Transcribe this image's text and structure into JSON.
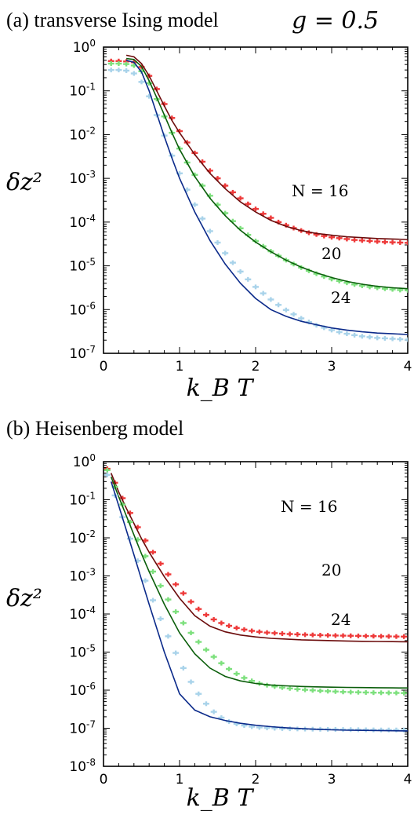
{
  "chart_data": [
    {
      "type": "line",
      "panel_label": "(a) transverse Ising model",
      "parameter_label": "g = 0.5",
      "xlabel": "k_B T",
      "ylabel": "δz²",
      "xlim": [
        0,
        4
      ],
      "ylim": [
        1e-07,
        1
      ],
      "yscale": "log",
      "x_ticks": [
        "0",
        "1",
        "2",
        "3",
        "4"
      ],
      "y_ticks": [
        "10^0",
        "10^-1",
        "10^-2",
        "10^-3",
        "10^-4",
        "10^-5",
        "10^-6",
        "10^-7"
      ],
      "series": [
        {
          "name": "N = 16",
          "label_text": "N = 16",
          "color_markers": "#ee3a3a",
          "color_line": "#6b0b0b",
          "data_x": [
            0.1,
            0.2,
            0.3,
            0.4,
            0.5,
            0.6,
            0.7,
            0.8,
            0.9,
            1.0,
            1.1,
            1.2,
            1.3,
            1.4,
            1.5,
            1.6,
            1.7,
            1.8,
            1.9,
            2.0,
            2.1,
            2.2,
            2.3,
            2.4,
            2.5,
            2.6,
            2.7,
            2.8,
            2.9,
            3.0,
            3.1,
            3.2,
            3.3,
            3.4,
            3.5,
            3.6,
            3.7,
            3.8,
            3.9,
            4.0
          ],
          "data_y": [
            0.48,
            0.48,
            0.47,
            0.45,
            0.35,
            0.22,
            0.11,
            0.05,
            0.024,
            0.012,
            0.0066,
            0.0038,
            0.0024,
            0.0015,
            0.001,
            0.00068,
            0.00048,
            0.00035,
            0.00026,
            0.0002,
            0.000155,
            0.000125,
            0.0001,
            8.5e-05,
            7.3e-05,
            6.4e-05,
            5.7e-05,
            5.2e-05,
            4.8e-05,
            4.5e-05,
            4.3e-05,
            4.1e-05,
            3.9e-05,
            3.8e-05,
            3.7e-05,
            3.6e-05,
            3.5e-05,
            3.45e-05,
            3.4e-05,
            3.35e-05
          ],
          "curve_x": [
            0.3,
            0.4,
            0.5,
            0.6,
            0.7,
            0.8,
            0.9,
            1.0,
            1.2,
            1.4,
            1.6,
            1.8,
            2.0,
            2.2,
            2.4,
            2.6,
            2.8,
            3.0,
            3.2,
            3.4,
            3.6,
            3.8,
            4.0
          ],
          "curve_y": [
            0.65,
            0.6,
            0.42,
            0.22,
            0.1,
            0.045,
            0.021,
            0.011,
            0.0035,
            0.0013,
            0.00058,
            0.00029,
            0.00017,
            0.00011,
            8e-05,
            6.4e-05,
            5.5e-05,
            5e-05,
            4.6e-05,
            4.4e-05,
            4.2e-05,
            4.1e-05,
            4e-05
          ]
        },
        {
          "name": "20",
          "label_text": "20",
          "color_markers": "#7de07d",
          "color_line": "#0b5e0b",
          "data_x": [
            0.1,
            0.2,
            0.3,
            0.4,
            0.5,
            0.6,
            0.7,
            0.8,
            0.9,
            1.0,
            1.1,
            1.2,
            1.3,
            1.4,
            1.5,
            1.6,
            1.7,
            1.8,
            1.9,
            2.0,
            2.1,
            2.2,
            2.3,
            2.4,
            2.5,
            2.6,
            2.7,
            2.8,
            2.9,
            3.0,
            3.1,
            3.2,
            3.3,
            3.4,
            3.5,
            3.6,
            3.7,
            3.8,
            3.9,
            4.0
          ],
          "data_y": [
            0.42,
            0.42,
            0.41,
            0.38,
            0.28,
            0.15,
            0.065,
            0.026,
            0.011,
            0.0048,
            0.0023,
            0.0012,
            0.00068,
            0.0004,
            0.00025,
            0.00016,
            0.000105,
            7.2e-05,
            5.1e-05,
            3.7e-05,
            2.8e-05,
            2.15e-05,
            1.7e-05,
            1.35e-05,
            1.1e-05,
            9.1e-06,
            7.7e-06,
            6.6e-06,
            5.7e-06,
            5e-06,
            4.5e-06,
            4.1e-06,
            3.75e-06,
            3.5e-06,
            3.3e-06,
            3.15e-06,
            3e-06,
            2.9e-06,
            2.8e-06,
            2.75e-06
          ],
          "curve_x": [
            0.3,
            0.4,
            0.5,
            0.6,
            0.7,
            0.8,
            0.9,
            1.0,
            1.2,
            1.4,
            1.6,
            1.8,
            2.0,
            2.2,
            2.4,
            2.6,
            2.8,
            3.0,
            3.2,
            3.4,
            3.6,
            3.8,
            4.0
          ],
          "curve_y": [
            0.55,
            0.52,
            0.36,
            0.17,
            0.07,
            0.028,
            0.011,
            0.0046,
            0.0011,
            0.00035,
            0.00014,
            6.5e-05,
            3.5e-05,
            2.1e-05,
            1.35e-05,
            9.3e-06,
            6.9e-06,
            5.4e-06,
            4.4e-06,
            3.8e-06,
            3.4e-06,
            3.15e-06,
            3e-06
          ]
        },
        {
          "name": "24",
          "label_text": "24",
          "color_markers": "#a9d3ea",
          "color_line": "#0b2a8a",
          "data_x": [
            0.1,
            0.2,
            0.3,
            0.4,
            0.5,
            0.6,
            0.7,
            0.8,
            0.9,
            1.0,
            1.1,
            1.2,
            1.3,
            1.4,
            1.5,
            1.6,
            1.7,
            1.8,
            1.9,
            2.0,
            2.1,
            2.2,
            2.3,
            2.4,
            2.5,
            2.6,
            2.7,
            2.8,
            2.9,
            3.0,
            3.1,
            3.2,
            3.3,
            3.4,
            3.5,
            3.6,
            3.7,
            3.8,
            3.9,
            4.0
          ],
          "data_y": [
            0.3,
            0.3,
            0.29,
            0.25,
            0.16,
            0.075,
            0.028,
            0.0095,
            0.0033,
            0.0013,
            0.00055,
            0.00025,
            0.00012,
            6.2e-05,
            3.4e-05,
            1.95e-05,
            1.18e-05,
            7.4e-06,
            4.9e-06,
            3.3e-06,
            2.35e-06,
            1.7e-06,
            1.28e-06,
            9.8e-07,
            7.8e-07,
            6.3e-07,
            5.2e-07,
            4.4e-07,
            3.85e-07,
            3.4e-07,
            3.05e-07,
            2.8e-07,
            2.6e-07,
            2.45e-07,
            2.35e-07,
            2.25e-07,
            2.2e-07,
            2.15e-07,
            2.1e-07,
            2.05e-07
          ],
          "curve_x": [
            0.3,
            0.4,
            0.5,
            0.6,
            0.7,
            0.8,
            0.9,
            1.0,
            1.2,
            1.4,
            1.6,
            1.8,
            2.0,
            2.2,
            2.4,
            2.6,
            2.8,
            3.0,
            3.2,
            3.4,
            3.6,
            3.8,
            4.0
          ],
          "curve_y": [
            0.5,
            0.45,
            0.27,
            0.1,
            0.03,
            0.009,
            0.0029,
            0.001,
            0.00017,
            3.8e-05,
            1.1e-05,
            4e-06,
            1.8e-06,
            1e-06,
            7e-07,
            5.4e-07,
            4.5e-07,
            3.8e-07,
            3.4e-07,
            3.1e-07,
            2.9e-07,
            2.8e-07,
            2.7e-07
          ]
        }
      ]
    },
    {
      "type": "line",
      "panel_label": "(b) Heisenberg model",
      "xlabel": "k_B T",
      "ylabel": "δz²",
      "xlim": [
        0,
        4
      ],
      "ylim": [
        1e-08,
        1
      ],
      "yscale": "log",
      "x_ticks": [
        "0",
        "1",
        "2",
        "3",
        "4"
      ],
      "y_ticks": [
        "10^0",
        "10^-1",
        "10^-2",
        "10^-3",
        "10^-4",
        "10^-5",
        "10^-6",
        "10^-7",
        "10^-8"
      ],
      "series": [
        {
          "name": "N = 16",
          "label_text": "N = 16",
          "color_markers": "#ee3a3a",
          "color_line": "#6b0b0b",
          "data_x": [
            0.05,
            0.15,
            0.25,
            0.35,
            0.45,
            0.55,
            0.65,
            0.75,
            0.85,
            0.95,
            1.05,
            1.15,
            1.25,
            1.35,
            1.45,
            1.55,
            1.65,
            1.75,
            1.85,
            1.95,
            2.05,
            2.15,
            2.25,
            2.35,
            2.45,
            2.55,
            2.65,
            2.75,
            2.85,
            2.95,
            3.05,
            3.15,
            3.25,
            3.35,
            3.45,
            3.55,
            3.65,
            3.75,
            3.85,
            3.95
          ],
          "data_y": [
            0.65,
            0.28,
            0.11,
            0.045,
            0.019,
            0.0085,
            0.0042,
            0.0021,
            0.0011,
            0.0006,
            0.00035,
            0.00021,
            0.000135,
            9.5e-05,
            7.2e-05,
            5.8e-05,
            4.9e-05,
            4.3e-05,
            3.9e-05,
            3.6e-05,
            3.4e-05,
            3.25e-05,
            3.15e-05,
            3.05e-05,
            2.98e-05,
            2.92e-05,
            2.86e-05,
            2.82e-05,
            2.78e-05,
            2.75e-05,
            2.72e-05,
            2.7e-05,
            2.68e-05,
            2.66e-05,
            2.64e-05,
            2.62e-05,
            2.6e-05,
            2.58e-05,
            2.56e-05,
            2.55e-05
          ],
          "curve_x": [
            0.1,
            0.2,
            0.3,
            0.4,
            0.5,
            0.6,
            0.8,
            1.0,
            1.2,
            1.4,
            1.6,
            1.8,
            2.0,
            2.2,
            2.4,
            2.6,
            2.8,
            3.0,
            3.2,
            3.4,
            3.6,
            3.8,
            4.0
          ],
          "curve_y": [
            0.5,
            0.16,
            0.06,
            0.024,
            0.0095,
            0.0042,
            0.00095,
            0.00026,
            9e-05,
            4.8e-05,
            3.4e-05,
            2.8e-05,
            2.5e-05,
            2.3e-05,
            2.2e-05,
            2.1e-05,
            2.05e-05,
            2e-05,
            1.95e-05,
            1.92e-05,
            1.9e-05,
            1.88e-05,
            1.86e-05
          ]
        },
        {
          "name": "20",
          "label_text": "20",
          "color_markers": "#7de07d",
          "color_line": "#0b5e0b",
          "data_x": [
            0.05,
            0.15,
            0.25,
            0.35,
            0.45,
            0.55,
            0.65,
            0.75,
            0.85,
            0.95,
            1.05,
            1.15,
            1.25,
            1.35,
            1.45,
            1.55,
            1.65,
            1.75,
            1.85,
            1.95,
            2.05,
            2.15,
            2.25,
            2.35,
            2.45,
            2.55,
            2.65,
            2.75,
            2.85,
            2.95,
            3.05,
            3.15,
            3.25,
            3.35,
            3.45,
            3.55,
            3.65,
            3.75,
            3.85,
            3.95
          ],
          "data_y": [
            0.6,
            0.22,
            0.075,
            0.026,
            0.009,
            0.0033,
            0.0013,
            0.00055,
            0.00024,
            0.000115,
            5.8e-05,
            3.2e-05,
            1.85e-05,
            1.15e-05,
            7.5e-06,
            5.1e-06,
            3.6e-06,
            2.7e-06,
            2.1e-06,
            1.75e-06,
            1.5e-06,
            1.35e-06,
            1.25e-06,
            1.17e-06,
            1.11e-06,
            1.06e-06,
            1.02e-06,
            9.9e-07,
            9.6e-07,
            9.4e-07,
            9.2e-07,
            9e-07,
            8.9e-07,
            8.8e-07,
            8.7e-07,
            8.6e-07,
            8.55e-07,
            8.5e-07,
            8.45e-07,
            8.4e-07
          ],
          "curve_x": [
            0.1,
            0.2,
            0.3,
            0.4,
            0.5,
            0.6,
            0.8,
            1.0,
            1.2,
            1.4,
            1.6,
            1.8,
            2.0,
            2.2,
            2.4,
            2.6,
            2.8,
            3.0,
            3.2,
            3.4,
            3.6,
            3.8,
            4.0
          ],
          "curve_y": [
            0.4,
            0.12,
            0.038,
            0.012,
            0.0038,
            0.0013,
            0.00018,
            3.2e-05,
            9e-06,
            3.8e-06,
            2.3e-06,
            1.75e-06,
            1.5e-06,
            1.37e-06,
            1.3e-06,
            1.25e-06,
            1.22e-06,
            1.2e-06,
            1.18e-06,
            1.17e-06,
            1.16e-06,
            1.15e-06,
            1.14e-06
          ]
        },
        {
          "name": "24",
          "label_text": "24",
          "color_markers": "#a9d3ea",
          "color_line": "#0b2a8a",
          "data_x": [
            0.05,
            0.15,
            0.25,
            0.35,
            0.45,
            0.55,
            0.65,
            0.75,
            0.85,
            0.95,
            1.05,
            1.15,
            1.25,
            1.35,
            1.45,
            1.55,
            1.65,
            1.75,
            1.85,
            1.95,
            2.05,
            2.15,
            2.25,
            2.35,
            2.45,
            2.55,
            2.65,
            2.75,
            2.85,
            2.95,
            3.05,
            3.15,
            3.25,
            3.35,
            3.45,
            3.55,
            3.65,
            3.75,
            3.85,
            3.95
          ],
          "data_y": [
            0.45,
            0.13,
            0.035,
            0.0095,
            0.0025,
            0.00075,
            0.00023,
            7.5e-05,
            2.6e-05,
            9.5e-06,
            3.8e-06,
            1.65e-06,
            8e-07,
            4.4e-07,
            2.7e-07,
            1.9e-07,
            1.5e-07,
            1.3e-07,
            1.18e-07,
            1.1e-07,
            1.05e-07,
            1.02e-07,
            1e-07,
            9.8e-08,
            9.7e-08,
            9.6e-08,
            9.5e-08,
            9.45e-08,
            9.4e-08,
            9.35e-08,
            9.3e-08,
            9.25e-08,
            9.2e-08,
            9.15e-08,
            9.1e-08,
            9.05e-08,
            9e-08,
            9e-08,
            9e-08,
            9e-08
          ],
          "curve_x": [
            0.1,
            0.2,
            0.3,
            0.4,
            0.5,
            0.6,
            0.8,
            1.0,
            1.2,
            1.4,
            1.6,
            1.8,
            2.0,
            2.2,
            2.4,
            2.6,
            2.8,
            3.0,
            3.2,
            3.4,
            3.6,
            3.8,
            4.0
          ],
          "curve_y": [
            0.3,
            0.07,
            0.016,
            0.0036,
            0.0008,
            0.00018,
            1e-05,
            8e-07,
            3e-07,
            2e-07,
            1.6e-07,
            1.35e-07,
            1.2e-07,
            1.1e-07,
            1.03e-07,
            9.8e-08,
            9.4e-08,
            9.1e-08,
            8.9e-08,
            8.8e-08,
            8.7e-08,
            8.6e-08,
            8.5e-08
          ]
        }
      ]
    }
  ]
}
